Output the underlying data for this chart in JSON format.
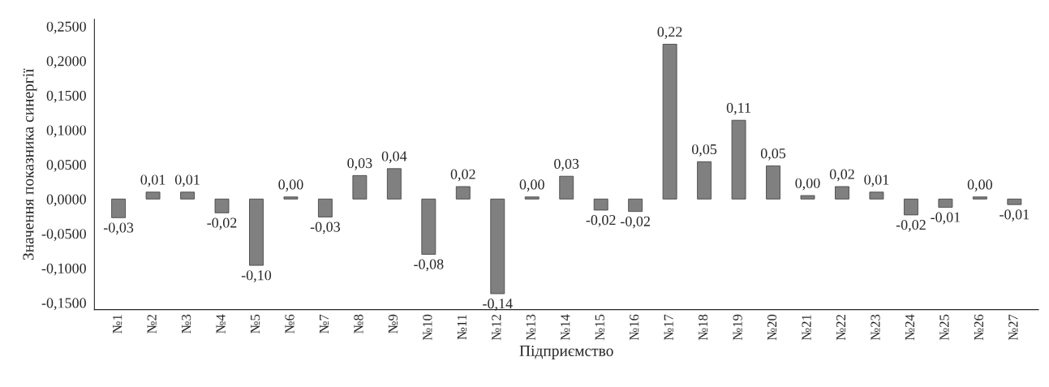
{
  "chart_data": {
    "type": "bar",
    "xlabel": "Підприємство",
    "ylabel": "Значення показника синергії",
    "categories": [
      "№1",
      "№2",
      "№3",
      "№4",
      "№5",
      "№6",
      "№7",
      "№8",
      "№9",
      "№10",
      "№11",
      "№12",
      "№13",
      "№14",
      "№15",
      "№16",
      "№17",
      "№18",
      "№19",
      "№20",
      "№21",
      "№22",
      "№23",
      "№24",
      "№25",
      "№26",
      "№27"
    ],
    "values": [
      -0.027,
      0.01,
      0.01,
      -0.02,
      -0.096,
      0.003,
      -0.026,
      0.034,
      0.044,
      -0.08,
      0.018,
      -0.137,
      0.003,
      0.033,
      -0.016,
      -0.018,
      0.224,
      0.054,
      0.114,
      0.048,
      0.005,
      0.018,
      0.01,
      -0.023,
      -0.012,
      0.003,
      -0.008
    ],
    "value_labels": [
      "-0,03",
      "0,01",
      "0,01",
      "-0,02",
      "-0,10",
      "0,00",
      "-0,03",
      "0,03",
      "0,04",
      "-0,08",
      "0,02",
      "-0,14",
      "0,00",
      "0,03",
      "-0,02",
      "-0,02",
      "0,22",
      "0,05",
      "0,11",
      "0,05",
      "0,00",
      "0,02",
      "0,01",
      "-0,02",
      "-0,01",
      "0,00",
      "-0,01"
    ],
    "color": "#808080",
    "ylim": [
      -0.16,
      0.26
    ],
    "yticks": [
      {
        "value": -0.15,
        "label": "-0,1500"
      },
      {
        "value": -0.1,
        "label": "-0,1000"
      },
      {
        "value": -0.05,
        "label": "-0,0500"
      },
      {
        "value": 0,
        "label": "0,0000"
      },
      {
        "value": 0.05,
        "label": "0,0500"
      },
      {
        "value": 0.1,
        "label": "0,1000"
      },
      {
        "value": 0.15,
        "label": "0,1500"
      },
      {
        "value": 0.2,
        "label": "0,2000"
      },
      {
        "value": 0.25,
        "label": "0,2500"
      }
    ],
    "grid": false,
    "legend": false
  }
}
